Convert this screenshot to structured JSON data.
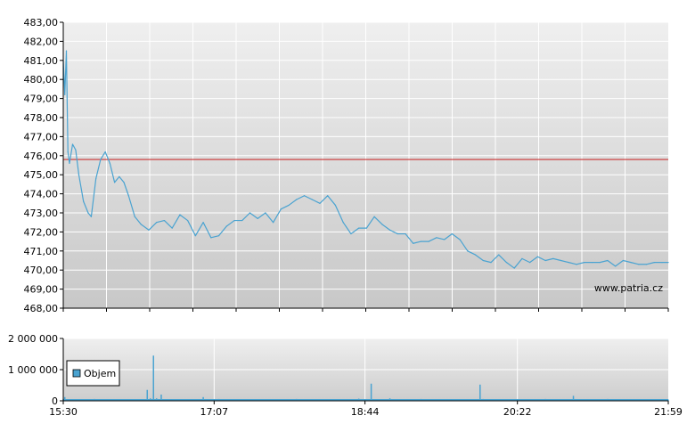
{
  "chart_data": [
    {
      "type": "line",
      "title": "",
      "xlabel": "",
      "ylabel": "",
      "ylim": [
        468,
        483
      ],
      "xlim": [
        "15:30",
        "21:59"
      ],
      "y_ticks": [
        "468,00",
        "469,00",
        "470,00",
        "471,00",
        "472,00",
        "473,00",
        "474,00",
        "475,00",
        "476,00",
        "477,00",
        "478,00",
        "479,00",
        "480,00",
        "481,00",
        "482,00",
        "483,00"
      ],
      "grid": true,
      "series": [
        {
          "name": "",
          "color": "#4aa3d1",
          "x": [
            "15:30",
            "15:31",
            "15:32",
            "15:33",
            "15:34",
            "15:36",
            "15:38",
            "15:40",
            "15:43",
            "15:46",
            "15:48",
            "15:51",
            "15:54",
            "15:57",
            "16:00",
            "16:03",
            "16:06",
            "16:09",
            "16:12",
            "16:16",
            "16:20",
            "16:25",
            "16:30",
            "16:35",
            "16:40",
            "16:45",
            "16:50",
            "16:55",
            "17:00",
            "17:05",
            "17:10",
            "17:15",
            "17:20",
            "17:25",
            "17:30",
            "17:35",
            "17:40",
            "17:45",
            "17:50",
            "17:55",
            "18:00",
            "18:05",
            "18:10",
            "18:15",
            "18:20",
            "18:25",
            "18:30",
            "18:35",
            "18:40",
            "18:45",
            "18:50",
            "18:55",
            "19:00",
            "19:05",
            "19:10",
            "19:15",
            "19:20",
            "19:25",
            "19:30",
            "19:35",
            "19:40",
            "19:45",
            "19:50",
            "19:55",
            "20:00",
            "20:05",
            "20:10",
            "20:15",
            "20:20",
            "20:25",
            "20:30",
            "20:35",
            "20:40",
            "20:45",
            "20:50",
            "20:55",
            "21:00",
            "21:05",
            "21:10",
            "21:15",
            "21:20",
            "21:25",
            "21:30",
            "21:35",
            "21:40",
            "21:45",
            "21:50",
            "21:55",
            "21:59"
          ],
          "y": [
            481.0,
            479.2,
            481.5,
            476.2,
            475.6,
            476.6,
            476.3,
            475.0,
            473.6,
            473.0,
            472.8,
            474.8,
            475.8,
            476.2,
            475.6,
            474.6,
            474.9,
            474.6,
            473.9,
            472.8,
            472.4,
            472.1,
            472.5,
            472.6,
            472.2,
            472.9,
            472.6,
            471.8,
            472.5,
            471.7,
            471.8,
            472.3,
            472.6,
            472.6,
            473.0,
            472.7,
            473.0,
            472.5,
            473.2,
            473.4,
            473.7,
            473.9,
            473.7,
            473.5,
            473.9,
            473.4,
            472.5,
            471.9,
            472.2,
            472.2,
            472.8,
            472.4,
            472.1,
            471.9,
            471.9,
            471.4,
            471.5,
            471.5,
            471.7,
            471.6,
            471.9,
            471.6,
            471.0,
            470.8,
            470.5,
            470.4,
            470.8,
            470.4,
            470.1,
            470.6,
            470.4,
            470.7,
            470.5,
            470.6,
            470.5,
            470.4,
            470.3,
            470.4,
            470.4,
            470.4,
            470.5,
            470.2,
            470.5,
            470.4,
            470.3,
            470.3,
            470.4,
            470.4,
            470.4
          ]
        }
      ],
      "reference_line": {
        "y": 475.8,
        "color": "#cc3333"
      },
      "annotations": [
        "www.patria.cz"
      ]
    },
    {
      "type": "bar",
      "title": "",
      "ylim": [
        0,
        2000000
      ],
      "y_ticks": [
        "0",
        "1 000 000",
        "2 000 000"
      ],
      "x_ticks": [
        "15:30",
        "17:07",
        "18:44",
        "20:22",
        "21:59"
      ],
      "legend": {
        "placement": "left",
        "entries": [
          "Objem"
        ]
      },
      "series": [
        {
          "name": "Objem",
          "color": "#4aa3d1",
          "x": [
            "15:30",
            "15:31",
            "15:33",
            "15:40",
            "15:50",
            "16:00",
            "16:20",
            "16:24",
            "16:26",
            "16:28",
            "16:30",
            "16:33",
            "16:40",
            "16:50",
            "17:00",
            "17:10",
            "17:20",
            "17:40",
            "18:00",
            "18:20",
            "18:40",
            "18:48",
            "19:00",
            "19:20",
            "19:40",
            "19:58",
            "20:00",
            "20:20",
            "20:40",
            "20:58",
            "21:00",
            "21:20",
            "21:40",
            "21:59"
          ],
          "values": [
            60000,
            120000,
            50000,
            40000,
            60000,
            30000,
            50000,
            350000,
            80000,
            1450000,
            80000,
            200000,
            50000,
            40000,
            120000,
            60000,
            50000,
            40000,
            60000,
            50000,
            70000,
            550000,
            80000,
            60000,
            50000,
            520000,
            60000,
            50000,
            60000,
            160000,
            50000,
            60000,
            50000,
            40000
          ]
        }
      ]
    }
  ],
  "branding": {
    "watermark": "www.patria.cz"
  },
  "colors": {
    "background_band": "#e4e4e4",
    "line": "#4aa3d1",
    "reference": "#cc3333",
    "grid": "#ffffff",
    "axis": "#000000"
  }
}
